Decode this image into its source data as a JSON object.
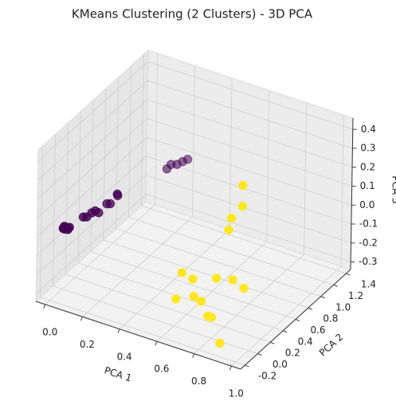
{
  "chart_data": {
    "type": "scatter3d",
    "title": "KMeans Clustering (2 Clusters) - 3D PCA",
    "xlabel": "PCA 1",
    "ylabel": "PCA 2",
    "zlabel": "PCA 3",
    "xlim": [
      -0.05,
      1.05
    ],
    "ylim": [
      -0.27,
      1.47
    ],
    "zlim": [
      -0.34,
      0.46
    ],
    "xticks": [
      {
        "value": 0,
        "label": "0.0"
      },
      0.2,
      0.4,
      0.6,
      0.8,
      {
        "value": 1,
        "label": "1.0"
      }
    ],
    "yticks": [
      -0.2,
      {
        "value": 0,
        "label": "0.0"
      },
      0.2,
      0.4,
      0.6,
      0.8,
      {
        "value": 1,
        "label": "1.0"
      },
      1.2,
      1.4
    ],
    "zticks": [
      -0.3,
      -0.2,
      -0.1,
      {
        "value": 0,
        "label": "0.0"
      },
      0.1,
      0.2,
      0.3,
      0.4
    ],
    "grid": true,
    "series": [
      {
        "color": "#440154",
        "x": [
          0.0,
          0.005,
          0.01,
          0.015,
          0.0,
          0.02,
          0.03,
          0.035,
          0.045,
          0.05,
          0.055,
          0.065,
          0.07,
          0.072,
          0.08,
          0.15,
          0.155,
          0.17,
          0.18,
          0.19
        ],
        "y": [
          0.0,
          0.01,
          0.02,
          0.03,
          0.02,
          0.04,
          0.23,
          0.27,
          0.32,
          0.36,
          0.4,
          0.5,
          0.54,
          0.65,
          0.62,
          1.2,
          1.25,
          1.3,
          1.36,
          1.41
        ],
        "z": [
          -0.02,
          -0.025,
          -0.02,
          -0.03,
          -0.015,
          -0.02,
          -0.02,
          -0.03,
          -0.02,
          -0.02,
          -0.04,
          -0.02,
          -0.03,
          -0.02,
          0.0,
          -0.02,
          -0.01,
          -0.02,
          -0.02,
          -0.02
        ]
      },
      {
        "color": "#fde725",
        "x": [
          0.885,
          0.885,
          0.885,
          0.885,
          0.66,
          0.73,
          0.82,
          0.89,
          0.97,
          0.62,
          0.68,
          0.73,
          0.82,
          0.84,
          0.92
        ],
        "y": [
          0.215,
          0.215,
          0.04,
          0.0,
          -0.064,
          -0.1,
          0.01,
          0.06,
          0.0,
          -0.035,
          0.07,
          0.04,
          -0.12,
          -0.12,
          -0.22
        ],
        "z": [
          0.43,
          0.32,
          0.31,
          0.26,
          -0.02,
          -0.02,
          -0.02,
          -0.02,
          -0.02,
          -0.18,
          -0.18,
          -0.18,
          -0.18,
          -0.18,
          -0.26
        ]
      }
    ]
  }
}
